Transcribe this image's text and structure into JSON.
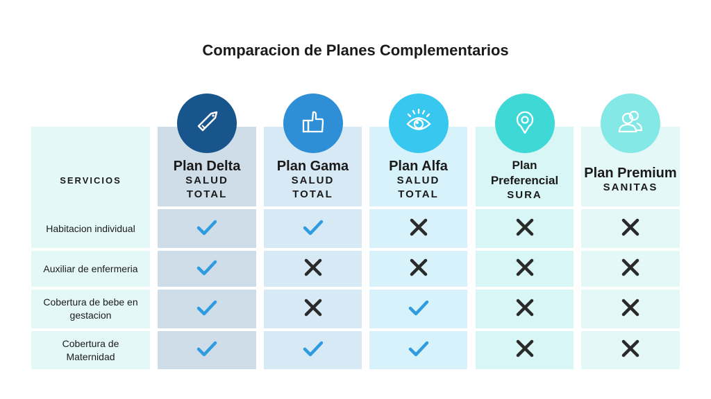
{
  "title": "Comparacion de Planes Complementarios",
  "services_header": "SERVICIOS",
  "services": [
    "Habitacion individual",
    "Auxiliar de enfermeria",
    "Cobertura de bebe en gestacion",
    "Cobertura de Maternidad"
  ],
  "plans": [
    {
      "name": "Plan Delta",
      "provider": "SALUD TOTAL",
      "icon": "tag-icon",
      "color": "#17558c",
      "bg": "#cfdde8",
      "coverage": [
        true,
        true,
        true,
        true
      ]
    },
    {
      "name": "Plan Gama",
      "provider": "SALUD TOTAL",
      "icon": "thumbs-up-icon",
      "color": "#2e8fd6",
      "bg": "#d8e9f6",
      "coverage": [
        true,
        false,
        false,
        true
      ]
    },
    {
      "name": "Plan Alfa",
      "provider": "SALUD TOTAL",
      "icon": "eye-icon",
      "color": "#38c8ef",
      "bg": "#d7f2fa",
      "coverage": [
        false,
        false,
        true,
        true
      ]
    },
    {
      "name": "Plan Preferencial",
      "provider": "SURA",
      "icon": "location-pin-icon",
      "color": "#3ed9d6",
      "bg": "#d8f6f5",
      "coverage": [
        false,
        false,
        false,
        false
      ]
    },
    {
      "name": "Plan Premium",
      "provider": "SANITAS",
      "icon": "users-icon",
      "color": "#84e8e6",
      "bg": "#e5f8f8",
      "coverage": [
        false,
        false,
        false,
        false
      ]
    }
  ],
  "colors": {
    "check": "#2f9be0",
    "cross": "#2a2a2a",
    "services_bg": "#e5f8f8"
  }
}
